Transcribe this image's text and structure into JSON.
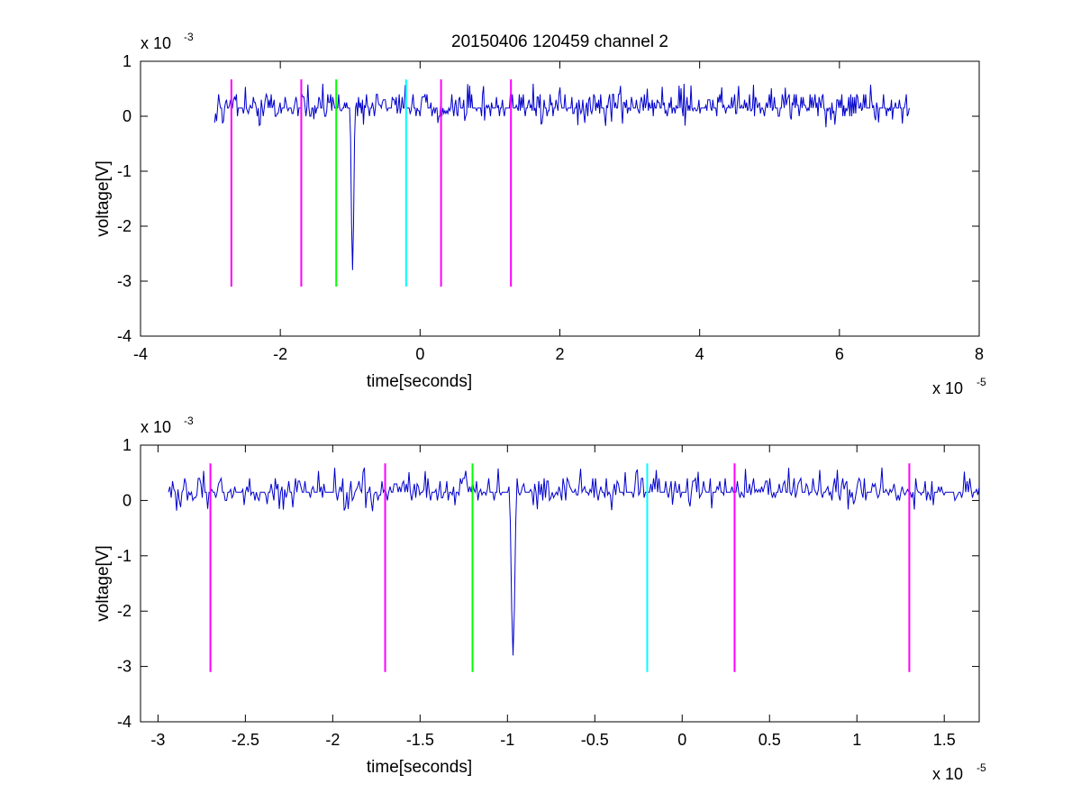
{
  "chart_data": [
    {
      "type": "line",
      "title": "20150406 120459 channel 2",
      "xlabel": "time[seconds]",
      "ylabel": "voltage[V]",
      "x_multiplier": {
        "base": "x 10",
        "exp": "-5"
      },
      "y_multiplier": {
        "base": "x 10",
        "exp": "-3"
      },
      "xlim": [
        -4e-05,
        8e-05
      ],
      "ylim": [
        -0.004,
        0.001
      ],
      "x_ticks": [
        -4e-05,
        -2e-05,
        0,
        2e-05,
        4e-05,
        6e-05,
        8e-05
      ],
      "x_tick_labels": [
        "-4",
        "-2",
        "0",
        "2",
        "4",
        "6",
        "8"
      ],
      "y_ticks": [
        -0.004,
        -0.003,
        -0.002,
        -0.001,
        0,
        0.001
      ],
      "y_tick_labels": [
        "-4",
        "-3",
        "-2",
        "-1",
        "0",
        "1"
      ],
      "grid": false,
      "series": [
        {
          "color": "#0000cc",
          "x_range": [
            -2.94e-05,
            7e-05
          ],
          "baseline": 0.00015,
          "noise_amplitude": 0.0002,
          "spike": {
            "x": -9.7e-06,
            "min": -0.0028
          }
        }
      ],
      "vertical_markers": [
        {
          "x": -2.7e-05,
          "color": "#ff00ff",
          "y_top": 0.00067,
          "y_bottom": -0.0031
        },
        {
          "x": -1.7e-05,
          "color": "#ff00ff",
          "y_top": 0.00067,
          "y_bottom": -0.0031
        },
        {
          "x": -1.2e-05,
          "color": "#00ff00",
          "y_top": 0.00067,
          "y_bottom": -0.0031
        },
        {
          "x": -2e-06,
          "color": "#00ffff",
          "y_top": 0.00067,
          "y_bottom": -0.0031
        },
        {
          "x": 3e-06,
          "color": "#ff00ff",
          "y_top": 0.00067,
          "y_bottom": -0.0031
        },
        {
          "x": 1.3e-05,
          "color": "#ff00ff",
          "y_top": 0.00067,
          "y_bottom": -0.0031
        }
      ]
    },
    {
      "type": "line",
      "title": "",
      "xlabel": "time[seconds]",
      "ylabel": "voltage[V]",
      "x_multiplier": {
        "base": "x 10",
        "exp": "-5"
      },
      "y_multiplier": {
        "base": "x 10",
        "exp": "-3"
      },
      "xlim": [
        -3.1e-05,
        1.7e-05
      ],
      "ylim": [
        -0.004,
        0.001
      ],
      "x_ticks": [
        -3e-05,
        -2.5e-05,
        -2e-05,
        -1.5e-05,
        -1e-05,
        -5e-06,
        0,
        5e-06,
        1e-05,
        1.5e-05
      ],
      "x_tick_labels": [
        "-3",
        "-2.5",
        "-2",
        "-1.5",
        "-1",
        "-0.5",
        "0",
        "0.5",
        "1",
        "1.5"
      ],
      "y_ticks": [
        -0.004,
        -0.003,
        -0.002,
        -0.001,
        0,
        0.001
      ],
      "y_tick_labels": [
        "-4",
        "-3",
        "-2",
        "-1",
        "0",
        "1"
      ],
      "grid": false,
      "series": [
        {
          "color": "#0000cc",
          "x_range": [
            -2.94e-05,
            1.7e-05
          ],
          "baseline": 0.00015,
          "noise_amplitude": 0.0002,
          "spike": {
            "x": -9.7e-06,
            "min": -0.0028
          }
        }
      ],
      "vertical_markers": [
        {
          "x": -2.7e-05,
          "color": "#ff00ff",
          "y_top": 0.00067,
          "y_bottom": -0.0031
        },
        {
          "x": -1.7e-05,
          "color": "#ff00ff",
          "y_top": 0.00067,
          "y_bottom": -0.0031
        },
        {
          "x": -1.2e-05,
          "color": "#00ff00",
          "y_top": 0.00067,
          "y_bottom": -0.0031
        },
        {
          "x": -2e-06,
          "color": "#00ffff",
          "y_top": 0.00067,
          "y_bottom": -0.0031
        },
        {
          "x": 3e-06,
          "color": "#ff00ff",
          "y_top": 0.00067,
          "y_bottom": -0.0031
        },
        {
          "x": 1.3e-05,
          "color": "#ff00ff",
          "y_top": 0.00067,
          "y_bottom": -0.0031
        }
      ]
    }
  ]
}
